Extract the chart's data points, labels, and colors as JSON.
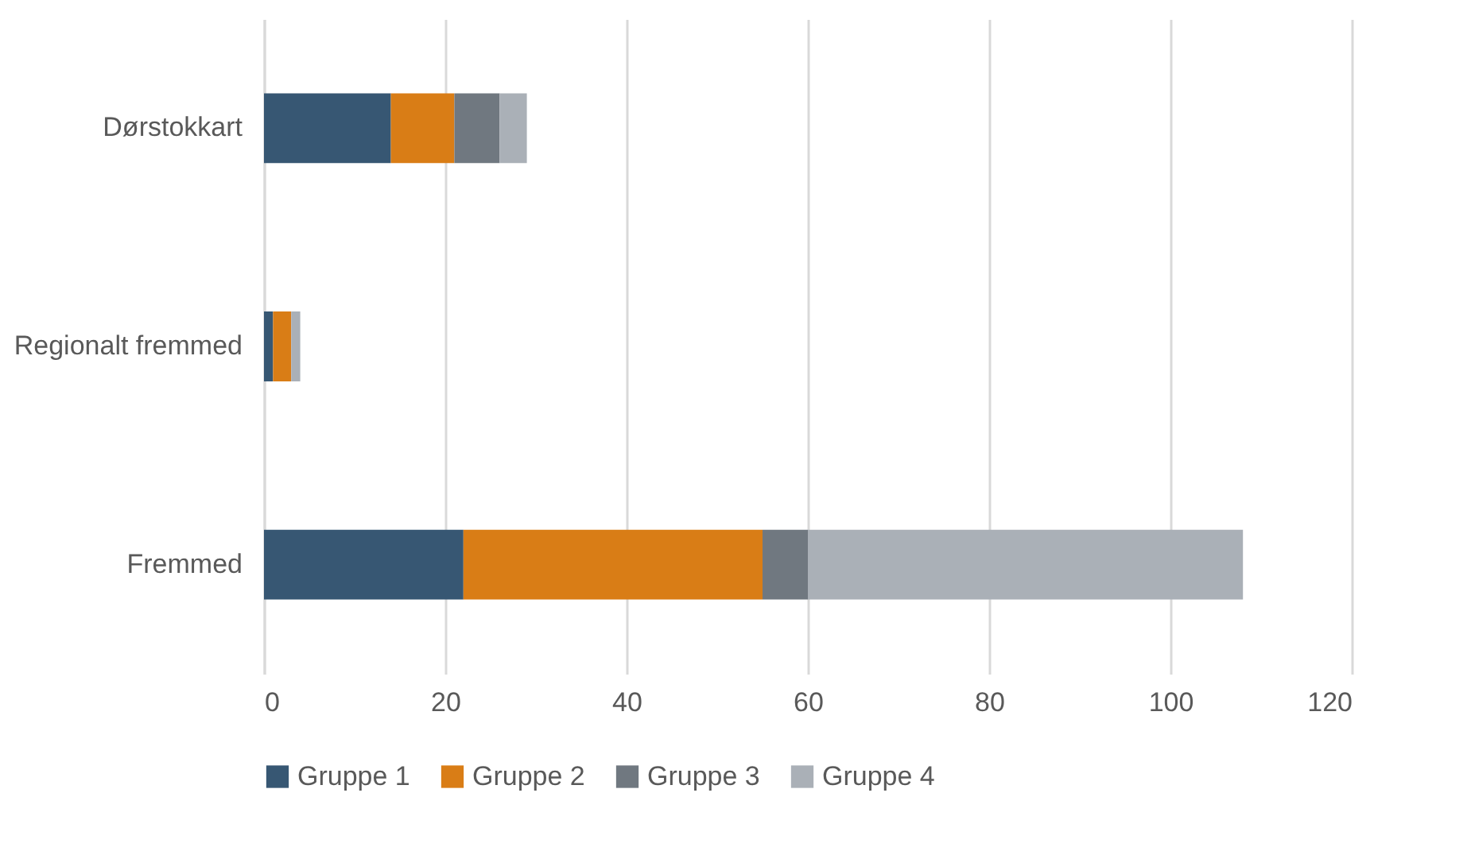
{
  "chart_data": {
    "type": "bar",
    "orientation": "horizontal",
    "stacked": true,
    "categories": [
      "Dørstokkart",
      "Regionalt fremmed",
      "Fremmed"
    ],
    "series": [
      {
        "name": "Gruppe 1",
        "color": "#375773",
        "values": [
          14,
          1,
          22
        ]
      },
      {
        "name": "Gruppe 2",
        "color": "#d97d16",
        "values": [
          7,
          2,
          33
        ]
      },
      {
        "name": "Gruppe 3",
        "color": "#707880",
        "values": [
          5,
          0,
          5
        ]
      },
      {
        "name": "Gruppe 4",
        "color": "#aab0b7",
        "values": [
          3,
          1,
          48
        ]
      }
    ],
    "xlim": [
      0,
      120
    ],
    "xticks": [
      0,
      20,
      40,
      60,
      80,
      100,
      120
    ],
    "grid": "x",
    "legend": "bottom"
  }
}
